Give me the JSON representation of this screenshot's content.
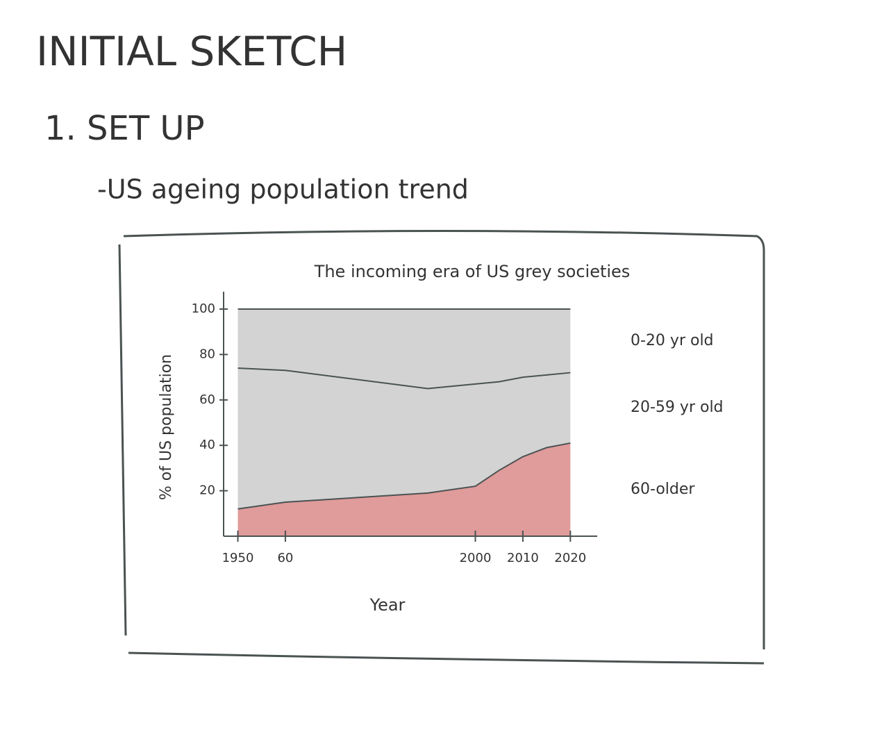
{
  "header": {
    "title": "INITIAL SKETCH",
    "section": "1. SET UP",
    "bullet": "-US ageing population trend"
  },
  "chart_data": {
    "type": "stacked-area",
    "title": "The incoming era of US grey societies",
    "x_label": "Year",
    "y_label": "% of US population",
    "x": [
      1950,
      1960,
      1990,
      2000,
      2005,
      2010,
      2015,
      2020
    ],
    "series": [
      {
        "name": "60-older",
        "color": "#e09b9b",
        "values": [
          12,
          15,
          19,
          22,
          29,
          35,
          39,
          41
        ]
      },
      {
        "name": "20-59 yr old",
        "color": "#d3d3d3",
        "values": [
          62,
          58,
          46,
          45,
          39,
          35,
          32,
          31
        ]
      },
      {
        "name": "0-20 yr old",
        "color": "#d3d3d3",
        "values": [
          26,
          27,
          35,
          33,
          32,
          30,
          29,
          28
        ]
      }
    ],
    "xlim": [
      1947,
      2022
    ],
    "xticks": [
      1950,
      {
        "value": 1960,
        "label": "60"
      },
      2000,
      2010,
      2020
    ],
    "ylim": [
      0,
      100
    ],
    "yticks": [
      20,
      40,
      60,
      80,
      100
    ]
  }
}
